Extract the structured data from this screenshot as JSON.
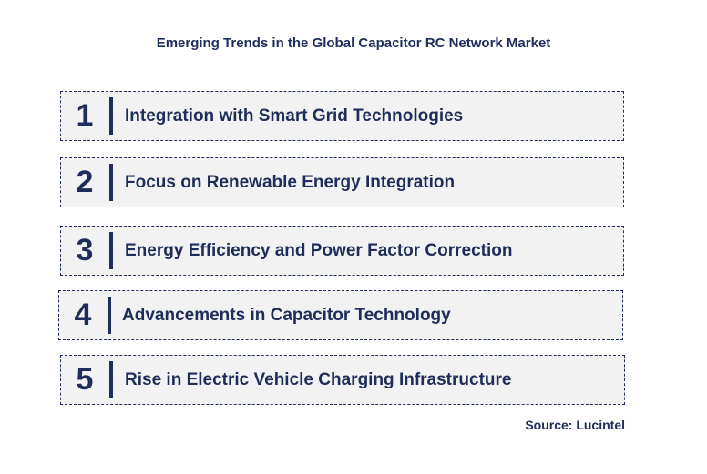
{
  "title": "Emerging Trends in the Global Capacitor RC Network Market",
  "trends": [
    {
      "number": "1",
      "label": "Integration with Smart Grid Technologies"
    },
    {
      "number": "2",
      "label": "Focus on Renewable Energy Integration"
    },
    {
      "number": "3",
      "label": "Energy Efficiency and Power Factor Correction"
    },
    {
      "number": "4",
      "label": "Advancements in Capacitor Technology"
    },
    {
      "number": "5",
      "label": "Rise in Electric Vehicle Charging Infrastructure"
    }
  ],
  "source": "Source: Lucintel",
  "colors": {
    "primary": "#1f2d5a",
    "box_fill": "#f2f2f2"
  }
}
